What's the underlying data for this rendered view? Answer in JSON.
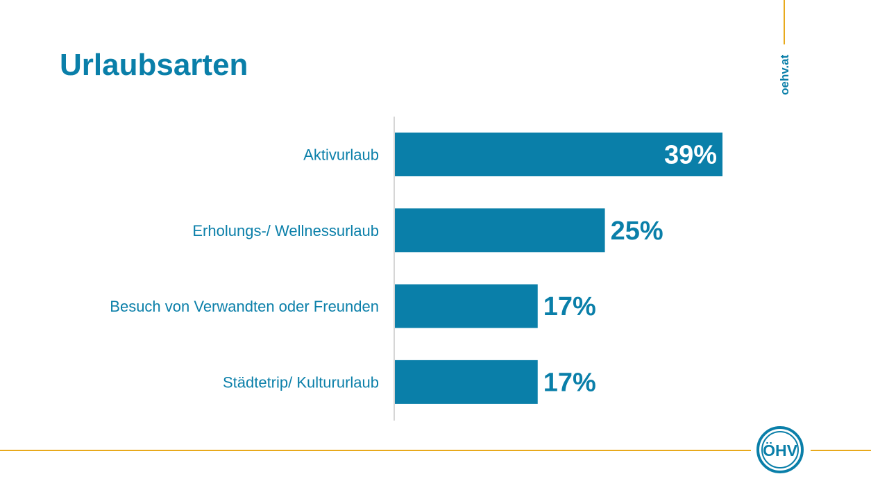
{
  "slide": {
    "title": "Urlaubsarten",
    "brand_text": "oehv.at",
    "logo_text": "ÖHV"
  },
  "colors": {
    "accent": "#0a7fa9",
    "bar": "#0a7fa9",
    "gold": "#e8a91c",
    "axis": "#c8c8c8"
  },
  "chart_data": {
    "type": "bar",
    "orientation": "horizontal",
    "title": "",
    "xlabel": "",
    "ylabel": "",
    "categories": [
      "Aktivurlaub",
      "Erholungs-/ Wellnessurlaub",
      "Besuch von Verwandten oder Freunden",
      "Städtetrip/ Kultururlaub"
    ],
    "values": [
      39,
      25,
      17,
      17
    ],
    "value_labels": [
      "39%",
      "25%",
      "17%",
      "17%"
    ],
    "unit": "%",
    "xlim": [
      0,
      50
    ],
    "grid": false,
    "legend": "none"
  }
}
